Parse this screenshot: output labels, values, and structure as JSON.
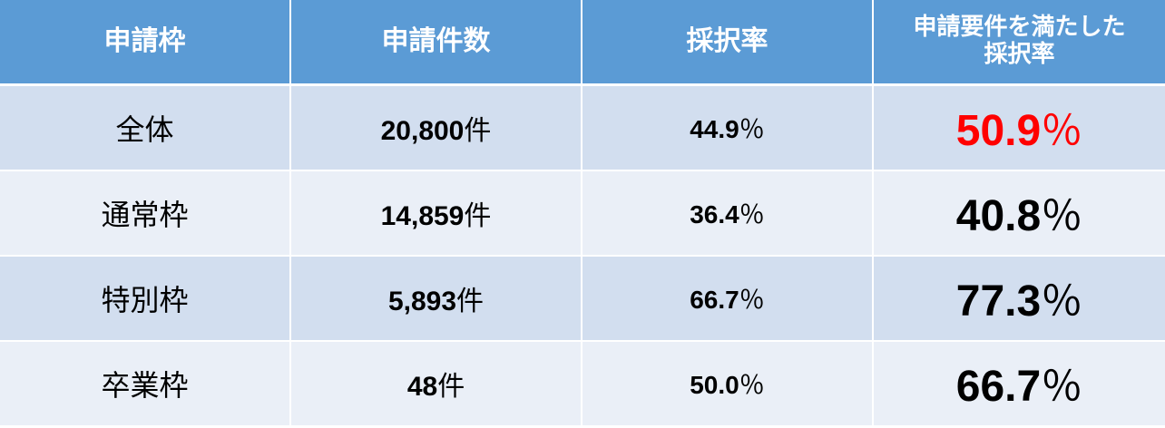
{
  "headers": [
    "申請枠",
    "申請件数",
    "採択率",
    "申請要件を満たした採択率"
  ],
  "header_last_lines": [
    "申請要件を満たした",
    "採択率"
  ],
  "rows": [
    {
      "category": "全体",
      "count": "20,800",
      "count_unit": "件",
      "rate": "44.9",
      "rate_unit": "％",
      "qualified_rate": "50.9",
      "qualified_unit": "％",
      "highlight": true
    },
    {
      "category": "通常枠",
      "count": "14,859",
      "count_unit": "件",
      "rate": "36.4",
      "rate_unit": "％",
      "qualified_rate": "40.8",
      "qualified_unit": "％",
      "highlight": false
    },
    {
      "category": "特別枠",
      "count": "5,893",
      "count_unit": "件",
      "rate": "66.7",
      "rate_unit": "％",
      "qualified_rate": "77.3",
      "qualified_unit": "％",
      "highlight": false
    },
    {
      "category": "卒業枠",
      "count": "48",
      "count_unit": "件",
      "rate": "50.0",
      "rate_unit": "％",
      "qualified_rate": "66.7",
      "qualified_unit": "％",
      "highlight": false
    }
  ],
  "colors": {
    "header": "#5b9bd5",
    "row_odd": "#d2deef",
    "row_even": "#eaeff7",
    "highlight": "#ff0000"
  }
}
